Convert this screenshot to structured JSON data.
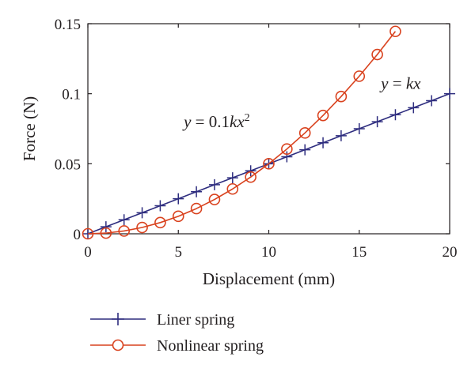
{
  "chart_data": {
    "type": "line",
    "title": "",
    "xlabel": "Displacement (mm)",
    "ylabel": "Force (N)",
    "xlim": [
      0,
      20
    ],
    "ylim": [
      0,
      0.15
    ],
    "xticks": [
      0,
      5,
      10,
      15,
      20
    ],
    "yticks": [
      0,
      0.05,
      0.1,
      0.15
    ],
    "xtick_labels": [
      "0",
      "5",
      "10",
      "15",
      "20"
    ],
    "ytick_labels": [
      "0",
      "0.05",
      "0.1",
      "0.15"
    ],
    "grid": false,
    "legend_position": "bottom-left, below plot",
    "series": [
      {
        "name": "Liner spring",
        "color": "#2e2d7f",
        "marker": "plus",
        "x": [
          0,
          1,
          2,
          3,
          4,
          5,
          6,
          7,
          8,
          9,
          10,
          11,
          12,
          13,
          14,
          15,
          16,
          17,
          18,
          19,
          20
        ],
        "y": [
          0,
          0.005,
          0.01,
          0.015,
          0.02,
          0.025,
          0.03,
          0.035,
          0.04,
          0.045,
          0.05,
          0.055,
          0.06,
          0.065,
          0.07,
          0.075,
          0.08,
          0.085,
          0.09,
          0.095,
          0.1
        ]
      },
      {
        "name": "Nonlinear spring",
        "color": "#d9421e",
        "marker": "circle",
        "x": [
          0,
          1,
          2,
          3,
          4,
          5,
          6,
          7,
          8,
          9,
          10,
          11,
          12,
          13,
          14,
          15,
          16,
          17
        ],
        "y": [
          0,
          0.0005,
          0.002,
          0.0045,
          0.008,
          0.0125,
          0.018,
          0.0245,
          0.032,
          0.0405,
          0.05,
          0.0605,
          0.072,
          0.0845,
          0.098,
          0.1125,
          0.128,
          0.1445
        ]
      }
    ],
    "annotations": [
      {
        "name": "linear-eq",
        "parts": [
          "y",
          " = ",
          "kx"
        ],
        "sup": "",
        "x": 16.2,
        "y": 0.1035
      },
      {
        "name": "nonlinear-eq",
        "parts": [
          "y",
          " = 0.1",
          "kx"
        ],
        "sup": "2",
        "x": 5.3,
        "y": 0.076
      }
    ]
  }
}
